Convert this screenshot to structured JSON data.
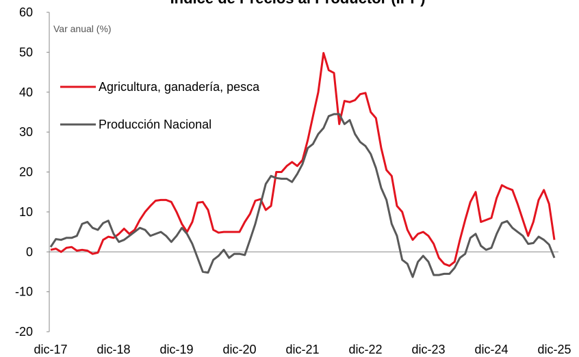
{
  "chart_data": {
    "type": "line",
    "title": "Índice de Precios al Productor (IPP)",
    "y_label": "Var anual (%)",
    "categories": [
      "dic-17",
      null,
      null,
      null,
      null,
      null,
      null,
      null,
      null,
      null,
      null,
      null,
      "dic-18",
      null,
      null,
      null,
      null,
      null,
      null,
      null,
      null,
      null,
      null,
      null,
      "dic-19",
      null,
      null,
      null,
      null,
      null,
      null,
      null,
      null,
      null,
      null,
      null,
      "dic-20",
      null,
      null,
      null,
      null,
      null,
      null,
      null,
      null,
      null,
      null,
      null,
      "dic-21",
      null,
      null,
      null,
      null,
      null,
      null,
      null,
      null,
      null,
      null,
      null,
      "dic-22",
      null,
      null,
      null,
      null,
      null,
      null,
      null,
      null,
      null,
      null,
      null,
      "dic-23",
      null,
      null,
      null,
      null,
      null,
      null,
      null,
      null,
      null,
      null,
      null,
      "dic-24",
      null,
      null,
      null,
      null,
      null,
      null,
      null,
      null,
      null,
      null,
      null,
      "dic-25"
    ],
    "series": [
      {
        "name": "Agricultura, ganadería, pesca",
        "color": "#e3141f",
        "values": [
          0.5,
          0.8,
          0,
          1,
          1.2,
          0.3,
          0.5,
          0.3,
          -0.5,
          -0.2,
          3,
          3.8,
          3.5,
          4.5,
          5.8,
          4.5,
          5.5,
          8,
          10,
          11.5,
          12.8,
          13,
          13,
          12.5,
          10,
          7,
          5,
          7.5,
          12.3,
          12.5,
          10.5,
          5.5,
          4.8,
          5,
          5,
          5,
          5,
          7.5,
          9.5,
          12.8,
          13.2,
          10.5,
          11.5,
          20,
          20,
          21.5,
          22.5,
          21.5,
          23,
          28,
          34,
          40,
          49.8,
          45.5,
          44.8,
          32,
          37.8,
          37.5,
          38,
          39.5,
          39.8,
          35,
          33.5,
          26,
          20.5,
          19,
          11.5,
          10,
          5.5,
          3,
          4.5,
          5,
          4,
          2,
          -1.5,
          -3,
          -3.5,
          -2.5,
          3,
          8,
          12.5,
          15,
          7.5,
          8,
          8.5,
          13.5,
          16.7,
          16,
          15.5,
          12,
          8,
          4,
          7.5,
          13,
          15.5,
          12,
          3
        ]
      },
      {
        "name": "Producción Nacional",
        "color": "#595959",
        "values": [
          1.2,
          3.2,
          3,
          3.5,
          3.5,
          4,
          7,
          7.5,
          6,
          5.5,
          7.2,
          7.8,
          4.5,
          2.5,
          3,
          4,
          5,
          6,
          5.5,
          4,
          4.5,
          5,
          4,
          2.5,
          4,
          6,
          4.5,
          2,
          -1.5,
          -5,
          -5.2,
          -2,
          -1,
          0.5,
          -1.5,
          -0.5,
          -0.5,
          -0.8,
          3,
          7,
          12,
          17,
          19,
          18.5,
          18.3,
          18.3,
          17.5,
          19.5,
          22,
          26,
          27,
          29.5,
          31,
          34,
          34.5,
          34.5,
          32,
          33,
          29.5,
          27.5,
          26.5,
          24.5,
          21,
          16,
          13,
          7,
          4,
          -2,
          -3,
          -6.3,
          -2.5,
          -1,
          -2.5,
          -5.8,
          -5.8,
          -5.5,
          -5.5,
          -4,
          -1.5,
          -0.5,
          3.5,
          4.5,
          1.5,
          0.5,
          1,
          4.5,
          7.2,
          7.7,
          6,
          5,
          4,
          2,
          2.2,
          3.8,
          3,
          1.8,
          -1.5
        ]
      }
    ],
    "ylim": [
      -20,
      60
    ],
    "yticks": [
      -20,
      -10,
      0,
      10,
      20,
      30,
      40,
      50,
      60
    ],
    "grid": false,
    "legend": "upper-left"
  }
}
